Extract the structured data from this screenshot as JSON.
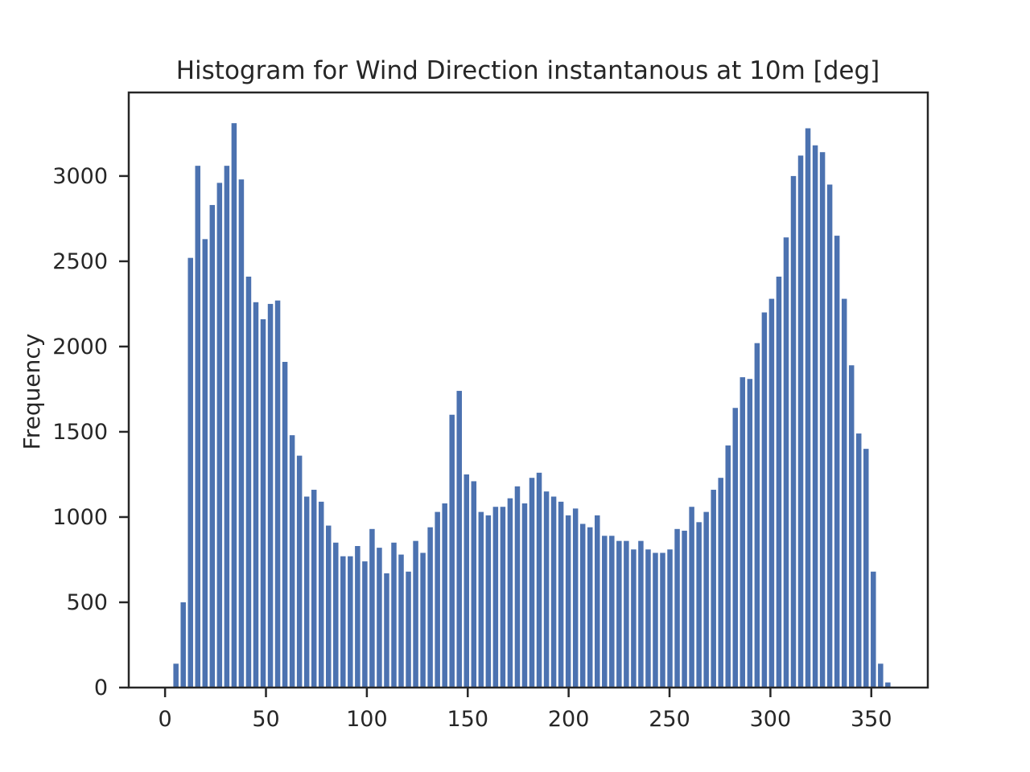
{
  "chart_data": {
    "type": "bar",
    "title": "Histogram for Wind Direction instantanous at 10m [deg]",
    "xlabel": "",
    "ylabel": "Frequency",
    "xlim": [
      -18,
      378
    ],
    "ylim": [
      0,
      3490
    ],
    "xticks": [
      0,
      50,
      100,
      150,
      200,
      250,
      300,
      350
    ],
    "yticks": [
      0,
      500,
      1000,
      1500,
      2000,
      2500,
      3000
    ],
    "bin_width": 3.6,
    "bin_start": 0,
    "bar_color": "#4c72b0",
    "grid": false,
    "values": [
      0,
      140,
      500,
      2520,
      3060,
      2630,
      2830,
      2960,
      3060,
      3310,
      2980,
      2410,
      2260,
      2160,
      2250,
      2270,
      1910,
      1480,
      1360,
      1120,
      1160,
      1090,
      950,
      850,
      770,
      770,
      830,
      740,
      930,
      820,
      670,
      850,
      780,
      680,
      860,
      790,
      940,
      1030,
      1080,
      1600,
      1740,
      1250,
      1210,
      1030,
      1010,
      1060,
      1060,
      1110,
      1180,
      1080,
      1230,
      1260,
      1150,
      1120,
      1090,
      1010,
      1050,
      960,
      940,
      1010,
      890,
      890,
      860,
      860,
      810,
      860,
      810,
      790,
      790,
      810,
      930,
      920,
      1060,
      970,
      1030,
      1160,
      1230,
      1420,
      1640,
      1820,
      1810,
      2020,
      2200,
      2280,
      2410,
      2640,
      3000,
      3120,
      3280,
      3180,
      3140,
      2950,
      2650,
      2280,
      1890,
      1490,
      1400,
      680,
      140,
      30
    ]
  }
}
